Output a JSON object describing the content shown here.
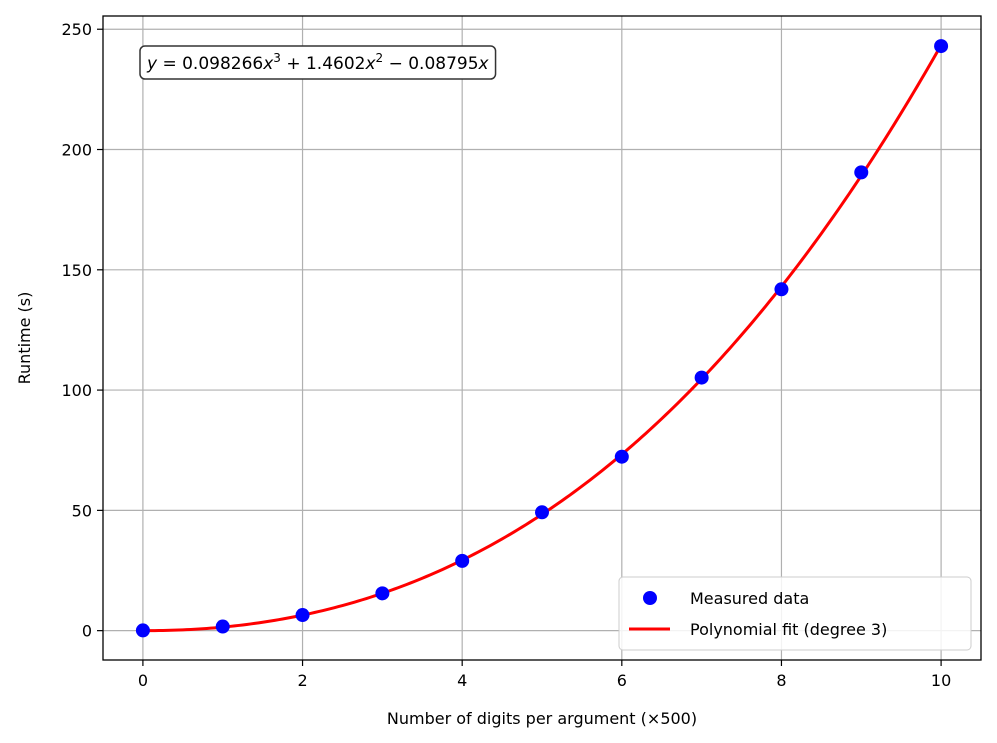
{
  "chart_data": {
    "type": "scatter",
    "xlabel": "Number of digits per argument (×500)",
    "ylabel": "Runtime (s)",
    "xlim": [
      -0.5,
      10.5
    ],
    "ylim": [
      -12.2,
      255.5
    ],
    "x_ticks": [
      0,
      2,
      4,
      6,
      8,
      10
    ],
    "y_ticks": [
      0,
      50,
      100,
      150,
      200,
      250
    ],
    "grid": true,
    "legend": "bottom-right",
    "annotation": {
      "parts": [
        {
          "t": "y",
          "italic": true
        },
        {
          "t": " = 0.098266",
          "italic": false
        },
        {
          "t": "x",
          "italic": true
        },
        {
          "t": "3",
          "sup": true
        },
        {
          "t": " + 1.4602",
          "italic": false
        },
        {
          "t": "x",
          "italic": true
        },
        {
          "t": "2",
          "sup": true
        },
        {
          "t": " − 0.08795",
          "italic": false
        },
        {
          "t": "x",
          "italic": true
        }
      ]
    },
    "series": [
      {
        "name": "Measured data",
        "kind": "scatter",
        "color": "#0000ff",
        "x": [
          0,
          1,
          2,
          3,
          4,
          5,
          6,
          7,
          8,
          9,
          10
        ],
        "y": [
          0.1,
          1.7,
          6.5,
          15.5,
          29.0,
          49.2,
          72.3,
          105.2,
          141.9,
          190.5,
          243.0
        ]
      },
      {
        "name": "Polynomial fit (degree 3)",
        "kind": "line",
        "color": "#ff0000",
        "coefficients": [
          0.098266,
          1.4602,
          -0.08795,
          0
        ]
      }
    ]
  }
}
